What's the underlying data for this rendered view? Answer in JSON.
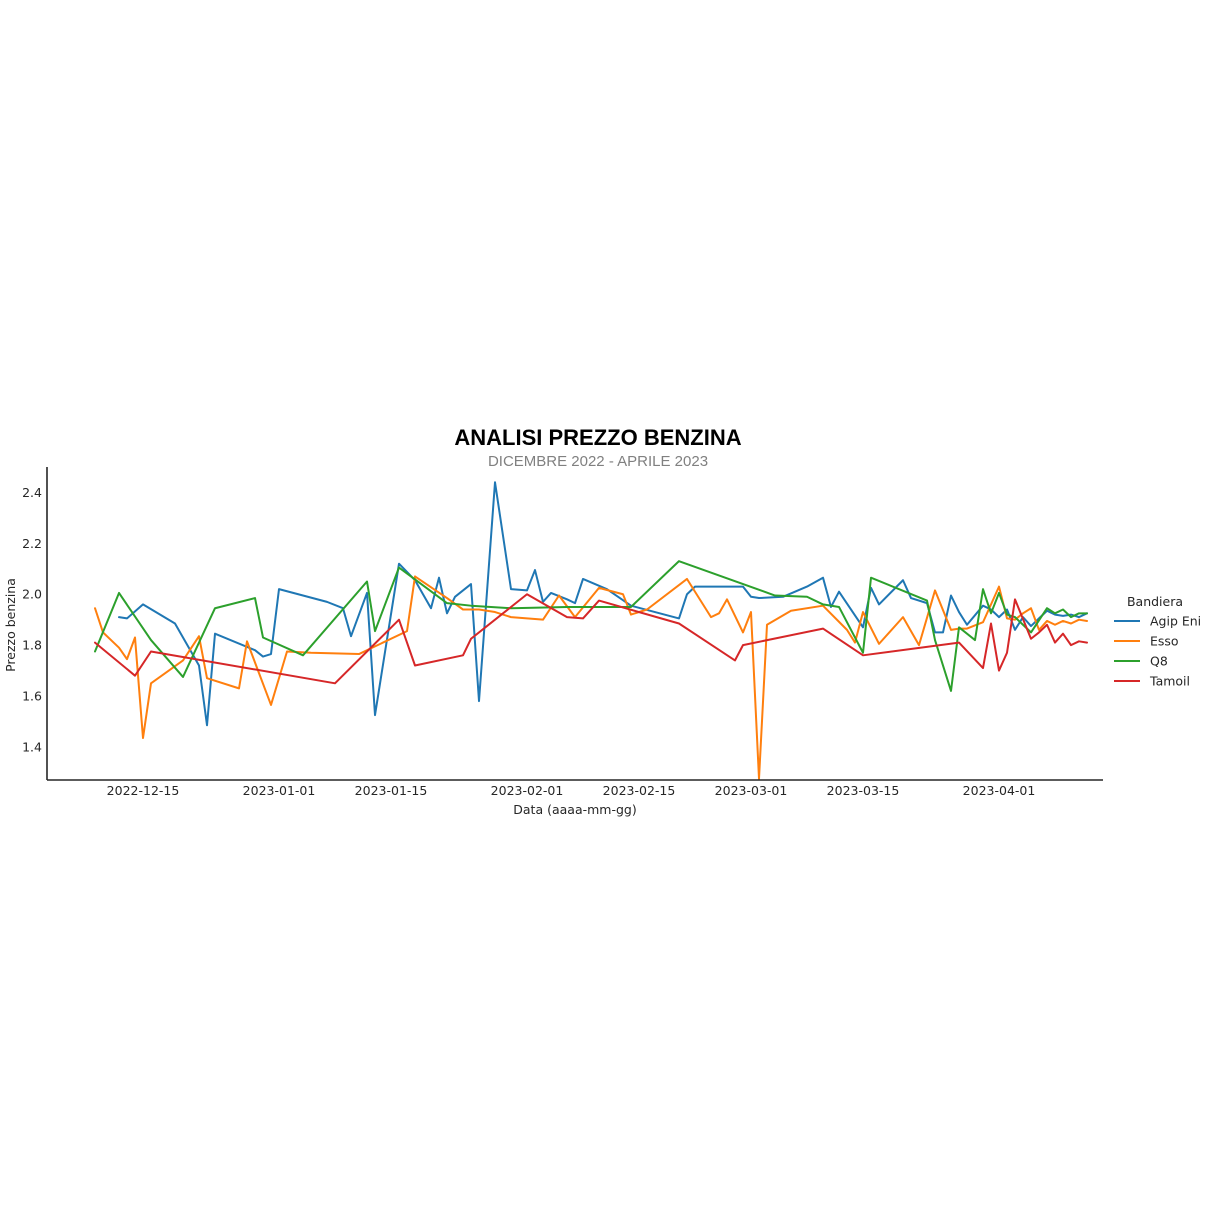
{
  "chart_data": {
    "type": "line",
    "title": "ANALISI PREZZO BENZINA",
    "subtitle": "DICEMBRE 2022 - APRILE 2023",
    "xlabel": "Data (aaaa-mm-gg)",
    "ylabel": "Prezzo benzina",
    "x_ticks": [
      "2022-12-15",
      "2023-01-01",
      "2023-01-15",
      "2023-02-01",
      "2023-02-15",
      "2023-03-01",
      "2023-03-15",
      "2023-04-01"
    ],
    "y_ticks": [
      "1.4",
      "1.6",
      "1.8",
      "2.0",
      "2.2",
      "2.4"
    ],
    "xlim": [
      "2022-12-03",
      "2023-04-14"
    ],
    "ylim": [
      1.27,
      2.5
    ],
    "grid": false,
    "legend_title": "Bandiera",
    "legend_position": "right",
    "series": [
      {
        "name": "Agip Eni",
        "color": "#1f77b4",
        "points": [
          [
            "2022-12-12",
            1.91
          ],
          [
            "2022-12-13",
            1.905
          ],
          [
            "2022-12-15",
            1.96
          ],
          [
            "2022-12-19",
            1.885
          ],
          [
            "2022-12-22",
            1.72
          ],
          [
            "2022-12-23",
            1.485
          ],
          [
            "2022-12-24",
            1.845
          ],
          [
            "2022-12-29",
            1.78
          ],
          [
            "2022-12-30",
            1.755
          ],
          [
            "2022-12-31",
            1.765
          ],
          [
            "2023-01-01",
            2.02
          ],
          [
            "2023-01-07",
            1.97
          ],
          [
            "2023-01-09",
            1.945
          ],
          [
            "2023-01-10",
            1.835
          ],
          [
            "2023-01-12",
            2.005
          ],
          [
            "2023-01-13",
            1.525
          ],
          [
            "2023-01-16",
            2.12
          ],
          [
            "2023-01-18",
            2.055
          ],
          [
            "2023-01-20",
            1.945
          ],
          [
            "2023-01-21",
            2.065
          ],
          [
            "2023-01-22",
            1.925
          ],
          [
            "2023-01-23",
            1.99
          ],
          [
            "2023-01-25",
            2.04
          ],
          [
            "2023-01-26",
            1.58
          ],
          [
            "2023-01-28",
            2.44
          ],
          [
            "2023-01-30",
            2.02
          ],
          [
            "2023-02-01",
            2.015
          ],
          [
            "2023-02-02",
            2.095
          ],
          [
            "2023-02-03",
            1.97
          ],
          [
            "2023-02-04",
            2.005
          ],
          [
            "2023-02-06",
            1.98
          ],
          [
            "2023-02-07",
            1.965
          ],
          [
            "2023-02-08",
            2.06
          ],
          [
            "2023-02-11",
            2.02
          ],
          [
            "2023-02-14",
            1.955
          ],
          [
            "2023-02-20",
            1.905
          ],
          [
            "2023-02-21",
            2.0
          ],
          [
            "2023-02-22",
            2.03
          ],
          [
            "2023-02-28",
            2.03
          ],
          [
            "2023-03-01",
            1.99
          ],
          [
            "2023-03-02",
            1.985
          ],
          [
            "2023-03-05",
            1.99
          ],
          [
            "2023-03-08",
            2.03
          ],
          [
            "2023-03-10",
            2.065
          ],
          [
            "2023-03-11",
            1.95
          ],
          [
            "2023-03-12",
            2.01
          ],
          [
            "2023-03-15",
            1.87
          ],
          [
            "2023-03-16",
            2.025
          ],
          [
            "2023-03-17",
            1.96
          ],
          [
            "2023-03-20",
            2.055
          ],
          [
            "2023-03-21",
            1.985
          ],
          [
            "2023-03-23",
            1.965
          ],
          [
            "2023-03-24",
            1.85
          ],
          [
            "2023-03-25",
            1.85
          ],
          [
            "2023-03-26",
            1.995
          ],
          [
            "2023-03-27",
            1.93
          ],
          [
            "2023-03-28",
            1.88
          ],
          [
            "2023-03-30",
            1.955
          ],
          [
            "2023-03-31",
            1.94
          ],
          [
            "2023-04-01",
            1.91
          ],
          [
            "2023-04-02",
            1.94
          ],
          [
            "2023-04-03",
            1.86
          ],
          [
            "2023-04-04",
            1.91
          ],
          [
            "2023-04-05",
            1.875
          ],
          [
            "2023-04-06",
            1.905
          ],
          [
            "2023-04-07",
            1.935
          ],
          [
            "2023-04-08",
            1.92
          ],
          [
            "2023-04-09",
            1.915
          ],
          [
            "2023-04-10",
            1.92
          ],
          [
            "2023-04-11",
            1.91
          ],
          [
            "2023-04-12",
            1.925
          ]
        ]
      },
      {
        "name": "Esso",
        "color": "#ff7f0e",
        "points": [
          [
            "2022-12-09",
            1.945
          ],
          [
            "2022-12-10",
            1.85
          ],
          [
            "2022-12-12",
            1.79
          ],
          [
            "2022-12-13",
            1.745
          ],
          [
            "2022-12-14",
            1.83
          ],
          [
            "2022-12-15",
            1.435
          ],
          [
            "2022-12-16",
            1.65
          ],
          [
            "2022-12-20",
            1.74
          ],
          [
            "2022-12-22",
            1.835
          ],
          [
            "2022-12-23",
            1.67
          ],
          [
            "2022-12-27",
            1.63
          ],
          [
            "2022-12-28",
            1.815
          ],
          [
            "2022-12-31",
            1.565
          ],
          [
            "2023-01-02",
            1.775
          ],
          [
            "2023-01-05",
            1.77
          ],
          [
            "2023-01-11",
            1.765
          ],
          [
            "2023-01-13",
            1.795
          ],
          [
            "2023-01-17",
            1.855
          ],
          [
            "2023-01-18",
            2.07
          ],
          [
            "2023-01-22",
            1.985
          ],
          [
            "2023-01-24",
            1.94
          ],
          [
            "2023-01-26",
            1.94
          ],
          [
            "2023-01-28",
            1.93
          ],
          [
            "2023-01-30",
            1.91
          ],
          [
            "2023-02-03",
            1.9
          ],
          [
            "2023-02-05",
            1.995
          ],
          [
            "2023-02-07",
            1.91
          ],
          [
            "2023-02-10",
            2.025
          ],
          [
            "2023-02-13",
            2.0
          ],
          [
            "2023-02-14",
            1.92
          ],
          [
            "2023-02-16",
            1.94
          ],
          [
            "2023-02-21",
            2.06
          ],
          [
            "2023-02-24",
            1.91
          ],
          [
            "2023-02-25",
            1.925
          ],
          [
            "2023-02-26",
            1.98
          ],
          [
            "2023-02-28",
            1.85
          ],
          [
            "2023-03-01",
            1.93
          ],
          [
            "2023-03-02",
            1.275
          ],
          [
            "2023-03-03",
            1.88
          ],
          [
            "2023-03-06",
            1.935
          ],
          [
            "2023-03-10",
            1.955
          ],
          [
            "2023-03-13",
            1.86
          ],
          [
            "2023-03-14",
            1.81
          ],
          [
            "2023-03-15",
            1.93
          ],
          [
            "2023-03-17",
            1.805
          ],
          [
            "2023-03-20",
            1.91
          ],
          [
            "2023-03-22",
            1.8
          ],
          [
            "2023-03-24",
            2.015
          ],
          [
            "2023-03-26",
            1.86
          ],
          [
            "2023-03-27",
            1.865
          ],
          [
            "2023-03-28",
            1.865
          ],
          [
            "2023-03-30",
            1.89
          ],
          [
            "2023-04-01",
            2.03
          ],
          [
            "2023-04-02",
            1.905
          ],
          [
            "2023-04-03",
            1.9
          ],
          [
            "2023-04-04",
            1.925
          ],
          [
            "2023-04-05",
            1.945
          ],
          [
            "2023-04-06",
            1.86
          ],
          [
            "2023-04-07",
            1.895
          ],
          [
            "2023-04-08",
            1.88
          ],
          [
            "2023-04-09",
            1.895
          ],
          [
            "2023-04-10",
            1.885
          ],
          [
            "2023-04-11",
            1.9
          ],
          [
            "2023-04-12",
            1.895
          ]
        ]
      },
      {
        "name": "Q8",
        "color": "#2ca02c",
        "points": [
          [
            "2022-12-09",
            1.775
          ],
          [
            "2022-12-12",
            2.005
          ],
          [
            "2022-12-16",
            1.82
          ],
          [
            "2022-12-20",
            1.675
          ],
          [
            "2022-12-24",
            1.945
          ],
          [
            "2022-12-29",
            1.985
          ],
          [
            "2022-12-30",
            1.83
          ],
          [
            "2023-01-04",
            1.76
          ],
          [
            "2023-01-12",
            2.05
          ],
          [
            "2023-01-13",
            1.855
          ],
          [
            "2023-01-16",
            2.105
          ],
          [
            "2023-01-22",
            1.965
          ],
          [
            "2023-01-25",
            1.955
          ],
          [
            "2023-01-30",
            1.945
          ],
          [
            "2023-02-06",
            1.95
          ],
          [
            "2023-02-14",
            1.95
          ],
          [
            "2023-02-20",
            2.13
          ],
          [
            "2023-03-04",
            1.995
          ],
          [
            "2023-03-08",
            1.99
          ],
          [
            "2023-03-10",
            1.96
          ],
          [
            "2023-03-12",
            1.95
          ],
          [
            "2023-03-15",
            1.77
          ],
          [
            "2023-03-16",
            2.065
          ],
          [
            "2023-03-23",
            1.975
          ],
          [
            "2023-03-24",
            1.82
          ],
          [
            "2023-03-26",
            1.62
          ],
          [
            "2023-03-27",
            1.87
          ],
          [
            "2023-03-29",
            1.82
          ],
          [
            "2023-03-30",
            2.02
          ],
          [
            "2023-03-31",
            1.925
          ],
          [
            "2023-04-01",
            2.005
          ],
          [
            "2023-04-02",
            1.92
          ],
          [
            "2023-04-03",
            1.91
          ],
          [
            "2023-04-05",
            1.85
          ],
          [
            "2023-04-07",
            1.945
          ],
          [
            "2023-04-08",
            1.925
          ],
          [
            "2023-04-09",
            1.94
          ],
          [
            "2023-04-10",
            1.91
          ],
          [
            "2023-04-11",
            1.925
          ],
          [
            "2023-04-12",
            1.925
          ]
        ]
      },
      {
        "name": "Tamoil",
        "color": "#d62728",
        "points": [
          [
            "2022-12-09",
            1.81
          ],
          [
            "2022-12-14",
            1.68
          ],
          [
            "2022-12-16",
            1.775
          ],
          [
            "2023-01-08",
            1.65
          ],
          [
            "2023-01-16",
            1.9
          ],
          [
            "2023-01-18",
            1.72
          ],
          [
            "2023-01-24",
            1.76
          ],
          [
            "2023-01-25",
            1.825
          ],
          [
            "2023-02-01",
            2.0
          ],
          [
            "2023-02-06",
            1.91
          ],
          [
            "2023-02-08",
            1.905
          ],
          [
            "2023-02-10",
            1.975
          ],
          [
            "2023-02-20",
            1.885
          ],
          [
            "2023-02-27",
            1.74
          ],
          [
            "2023-02-28",
            1.8
          ],
          [
            "2023-03-10",
            1.865
          ],
          [
            "2023-03-15",
            1.76
          ],
          [
            "2023-03-27",
            1.81
          ],
          [
            "2023-03-30",
            1.71
          ],
          [
            "2023-03-31",
            1.885
          ],
          [
            "2023-04-01",
            1.7
          ],
          [
            "2023-04-02",
            1.77
          ],
          [
            "2023-04-03",
            1.98
          ],
          [
            "2023-04-05",
            1.825
          ],
          [
            "2023-04-06",
            1.85
          ],
          [
            "2023-04-07",
            1.88
          ],
          [
            "2023-04-08",
            1.81
          ],
          [
            "2023-04-09",
            1.845
          ],
          [
            "2023-04-10",
            1.8
          ],
          [
            "2023-04-11",
            1.815
          ],
          [
            "2023-04-12",
            1.81
          ]
        ]
      }
    ]
  }
}
